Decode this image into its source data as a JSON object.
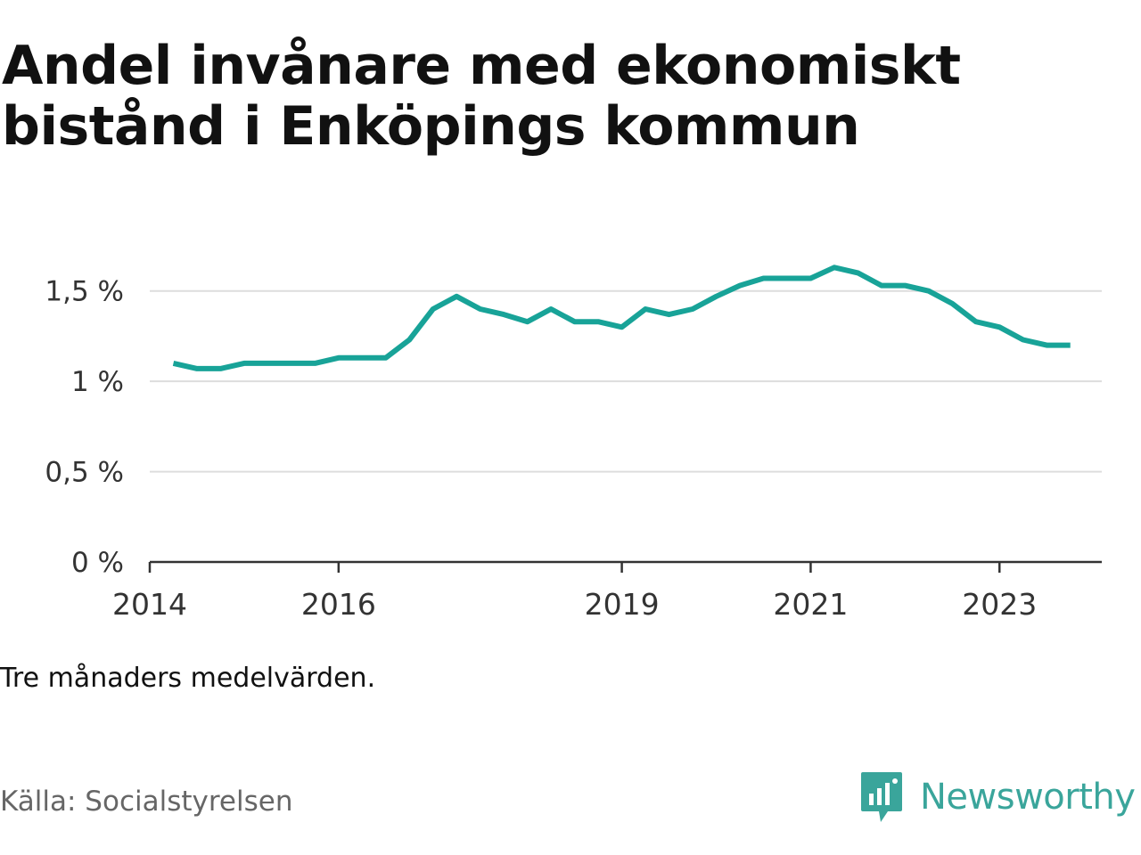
{
  "title": "Andel invånare med ekonomiskt bistånd i Enköpings kommun",
  "note": "Tre månaders medelvärden.",
  "source": "Källa: Socialstyrelsen",
  "brand": {
    "name": "Newsworthy",
    "icon": "bar-chart-speech-bubble-icon"
  },
  "colors": {
    "line": "#18a398",
    "grid": "#dddddd",
    "axis": "#333333",
    "brand": "#3aa59b"
  },
  "chart_data": {
    "type": "line",
    "title": "Andel invånare med ekonomiskt bistånd i Enköpings kommun",
    "xlabel": "",
    "ylabel": "",
    "ylim": [
      0,
      1.75
    ],
    "xlim": [
      "2014-01",
      "2024-02"
    ],
    "y_ticks": [
      {
        "value": 0,
        "label": "0 %"
      },
      {
        "value": 0.5,
        "label": "0,5 %"
      },
      {
        "value": 1,
        "label": "1 %"
      },
      {
        "value": 1.5,
        "label": "1,5 %"
      }
    ],
    "x_ticks": [
      {
        "value": "2014-01",
        "label": "2014"
      },
      {
        "value": "2016-01",
        "label": "2016"
      },
      {
        "value": "2019-01",
        "label": "2019"
      },
      {
        "value": "2021-01",
        "label": "2021"
      },
      {
        "value": "2023-01",
        "label": "2023"
      }
    ],
    "grid": true,
    "legend": "none",
    "series": [
      {
        "x": [
          "2014-04",
          "2014-07",
          "2014-10",
          "2015-01",
          "2015-04",
          "2015-07",
          "2015-10",
          "2016-01",
          "2016-04",
          "2016-07",
          "2016-10",
          "2017-01",
          "2017-04",
          "2017-07",
          "2017-10",
          "2018-01",
          "2018-04",
          "2018-07",
          "2018-10",
          "2019-01",
          "2019-04",
          "2019-07",
          "2019-10",
          "2020-01",
          "2020-04",
          "2020-07",
          "2020-10",
          "2021-01",
          "2021-04",
          "2021-07",
          "2021-10",
          "2022-01",
          "2022-04",
          "2022-07",
          "2022-10",
          "2023-01",
          "2023-04",
          "2023-07",
          "2023-10"
        ],
        "values": [
          1.1,
          1.07,
          1.07,
          1.1,
          1.1,
          1.1,
          1.1,
          1.13,
          1.13,
          1.13,
          1.23,
          1.4,
          1.47,
          1.4,
          1.37,
          1.33,
          1.4,
          1.33,
          1.33,
          1.3,
          1.4,
          1.37,
          1.4,
          1.47,
          1.53,
          1.57,
          1.57,
          1.57,
          1.63,
          1.6,
          1.53,
          1.53,
          1.5,
          1.43,
          1.33,
          1.3,
          1.23,
          1.2,
          1.2
        ]
      }
    ]
  }
}
